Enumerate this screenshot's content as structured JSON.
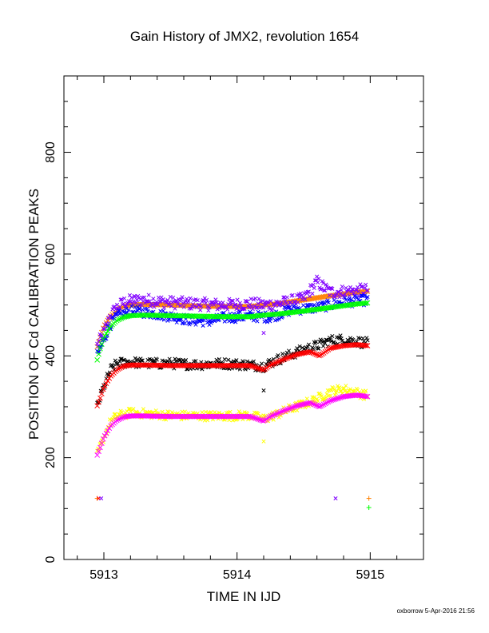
{
  "page": {
    "footnote": "oxborrow  5-Apr-2016 21:56"
  },
  "chart_data": {
    "type": "scatter",
    "title": "Gain History of JMX2, revolution 1654",
    "xlabel": "TIME IN IJD",
    "ylabel": "POSITION OF Cd CALIBRATION PEAKS",
    "xlim": [
      5912.7,
      5915.4
    ],
    "ylim": [
      0,
      950
    ],
    "xticks": [
      5913,
      5914,
      5915
    ],
    "yticks": [
      0,
      200,
      400,
      600,
      800
    ],
    "xtick_labels": [
      "5913",
      "5914",
      "5915"
    ],
    "ytick_labels": [
      "0",
      "200",
      "400",
      "600",
      "800"
    ],
    "grid": false,
    "series": [
      {
        "role": "fit",
        "marker": "dense",
        "color": "#ff8000",
        "x": [
          5912.95,
          5912.97,
          5913.0,
          5913.05,
          5913.1,
          5913.15,
          5913.2,
          5913.3,
          5913.5,
          5913.7,
          5913.9,
          5914.1,
          5914.2,
          5914.3,
          5914.5,
          5914.7,
          5914.9,
          5914.98
        ],
        "y": [
          418,
          435,
          458,
          478,
          490,
          497,
          500,
          501,
          500,
          498,
          497,
          497,
          500,
          502,
          510,
          518,
          525,
          527
        ]
      },
      {
        "role": "scatter",
        "marker": "x",
        "color": "#8000ff",
        "x": [
          5912.95,
          5913.0,
          5913.05,
          5913.1,
          5913.15,
          5913.2,
          5913.3,
          5913.5,
          5913.7,
          5913.9,
          5914.1,
          5914.2,
          5914.3,
          5914.5,
          5914.6,
          5914.7,
          5914.9,
          5914.98
        ],
        "y": [
          420,
          445,
          480,
          495,
          505,
          508,
          510,
          505,
          502,
          500,
          502,
          500,
          502,
          512,
          545,
          525,
          528,
          530
        ],
        "spread": 12
      },
      {
        "role": "scatter",
        "marker": "x",
        "color": "#0000ff",
        "x": [
          5912.95,
          5913.0,
          5913.05,
          5913.1,
          5913.2,
          5913.3,
          5913.5,
          5913.65,
          5913.8,
          5913.9,
          5914.1,
          5914.25,
          5914.4,
          5914.6,
          5914.8,
          5914.98
        ],
        "y": [
          400,
          432,
          462,
          478,
          488,
          486,
          478,
          470,
          468,
          475,
          478,
          476,
          490,
          495,
          505,
          510
        ],
        "spread": 10
      },
      {
        "role": "fit",
        "marker": "dense",
        "color": "#00ff00",
        "x": [
          5912.95,
          5912.97,
          5913.0,
          5913.05,
          5913.1,
          5913.15,
          5913.2,
          5913.3,
          5913.5,
          5913.7,
          5913.9,
          5914.1,
          5914.2,
          5914.3,
          5914.5,
          5914.7,
          5914.9,
          5914.98
        ],
        "y": [
          392,
          412,
          436,
          458,
          470,
          476,
          479,
          480,
          479,
          478,
          477,
          477,
          480,
          482,
          488,
          495,
          502,
          504
        ]
      },
      {
        "role": "scatter",
        "marker": "x",
        "color": "#000000",
        "x": [
          5912.95,
          5913.0,
          5913.05,
          5913.1,
          5913.2,
          5913.3,
          5913.5,
          5913.7,
          5913.9,
          5914.1,
          5914.2,
          5914.3,
          5914.4,
          5914.5,
          5914.6,
          5914.7,
          5914.8,
          5914.98
        ],
        "y": [
          300,
          340,
          372,
          385,
          388,
          385,
          385,
          383,
          385,
          382,
          380,
          392,
          402,
          412,
          420,
          430,
          432,
          425
        ],
        "spread": 10
      },
      {
        "role": "fit",
        "marker": "dense",
        "color": "#ff0000",
        "x": [
          5912.95,
          5912.97,
          5913.0,
          5913.05,
          5913.1,
          5913.15,
          5913.2,
          5913.3,
          5913.5,
          5913.7,
          5913.9,
          5914.1,
          5914.2,
          5914.25,
          5914.35,
          5914.45,
          5914.55,
          5914.62,
          5914.7,
          5914.8,
          5914.9,
          5914.98
        ],
        "y": [
          302,
          315,
          338,
          360,
          373,
          380,
          382,
          382,
          381,
          381,
          381,
          381,
          372,
          382,
          393,
          403,
          408,
          400,
          415,
          420,
          422,
          420
        ]
      },
      {
        "role": "scatter",
        "marker": "x",
        "color": "#ffff00",
        "x": [
          5912.95,
          5913.0,
          5913.05,
          5913.1,
          5913.2,
          5913.3,
          5913.5,
          5913.7,
          5913.9,
          5914.1,
          5914.2,
          5914.3,
          5914.4,
          5914.5,
          5914.6,
          5914.7,
          5914.8,
          5914.98
        ],
        "y": [
          205,
          240,
          270,
          282,
          288,
          287,
          283,
          282,
          282,
          283,
          276,
          285,
          296,
          305,
          315,
          330,
          335,
          322
        ],
        "spread": 9
      },
      {
        "role": "fit",
        "marker": "dense",
        "color": "#ff00ff",
        "x": [
          5912.95,
          5912.97,
          5913.0,
          5913.05,
          5913.1,
          5913.15,
          5913.2,
          5913.3,
          5913.5,
          5913.7,
          5913.9,
          5914.1,
          5914.2,
          5914.25,
          5914.35,
          5914.45,
          5914.55,
          5914.62,
          5914.7,
          5914.8,
          5914.9,
          5914.98
        ],
        "y": [
          205,
          218,
          240,
          262,
          274,
          280,
          282,
          282,
          281,
          281,
          281,
          281,
          272,
          281,
          292,
          302,
          308,
          300,
          312,
          320,
          323,
          320
        ]
      },
      {
        "role": "points",
        "marker": "mixed",
        "points": [
          {
            "x": 5912.95,
            "y": 120,
            "marker": "+",
            "color": "#ff8000"
          },
          {
            "x": 5912.96,
            "y": 120,
            "marker": "x",
            "color": "#ff0000"
          },
          {
            "x": 5912.98,
            "y": 120,
            "marker": "x",
            "color": "#8000ff"
          },
          {
            "x": 5914.74,
            "y": 120,
            "marker": "x",
            "color": "#8000ff"
          },
          {
            "x": 5914.99,
            "y": 120,
            "marker": "+",
            "color": "#ff8000"
          },
          {
            "x": 5914.99,
            "y": 102,
            "marker": "+",
            "color": "#00ff00"
          },
          {
            "x": 5914.2,
            "y": 332,
            "marker": "x",
            "color": "#000000"
          },
          {
            "x": 5914.2,
            "y": 445,
            "marker": "x",
            "color": "#8000ff"
          },
          {
            "x": 5914.2,
            "y": 232,
            "marker": "x",
            "color": "#ffff00"
          }
        ]
      }
    ]
  }
}
